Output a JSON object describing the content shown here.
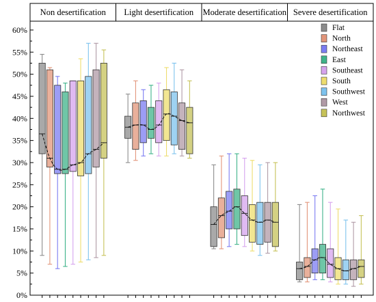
{
  "chart_data": {
    "type": "boxplot",
    "y_axis": {
      "min": 0,
      "max": 62,
      "ticks": [
        0,
        5,
        10,
        15,
        20,
        25,
        30,
        35,
        40,
        45,
        50,
        55,
        60
      ],
      "tick_labels": [
        "0%",
        "5%",
        "10%",
        "15%",
        "20%",
        "25%",
        "30%",
        "35%",
        "40%",
        "45%",
        "50%",
        "55%",
        "60%"
      ]
    },
    "groups": [
      "Non desertification",
      "Light desertification",
      "Moderate desertification",
      "Severe desertification"
    ],
    "series": [
      {
        "name": "Flat",
        "color": "#8c8c8c"
      },
      {
        "name": "North",
        "color": "#e2957a"
      },
      {
        "name": "Northeast",
        "color": "#7b7cf2"
      },
      {
        "name": "East",
        "color": "#3fb38a"
      },
      {
        "name": "Southeast",
        "color": "#d6a3ee"
      },
      {
        "name": "South",
        "color": "#eedd6e"
      },
      {
        "name": "Southwest",
        "color": "#7ec3ee"
      },
      {
        "name": "West",
        "color": "#b09aa6"
      },
      {
        "name": "Northwest",
        "color": "#c6c259"
      }
    ],
    "boxes": [
      [
        {
          "min": 9,
          "q1": 32,
          "median": 36.5,
          "q3": 52.5,
          "max": 54.5
        },
        {
          "min": 7,
          "q1": 29,
          "median": 31,
          "q3": 51,
          "max": 51.5
        },
        {
          "min": 6,
          "q1": 27.5,
          "median": 28.5,
          "q3": 47.5,
          "max": 49.5
        },
        {
          "min": 6.5,
          "q1": 27.5,
          "median": 28.5,
          "q3": 46,
          "max": 48
        },
        {
          "min": 7,
          "q1": 28,
          "median": 29.5,
          "q3": 48.5,
          "max": 48.5
        },
        {
          "min": 7.5,
          "q1": 27,
          "median": 30,
          "q3": 48.5,
          "max": 53.5
        },
        {
          "min": 8,
          "q1": 27.5,
          "median": 32,
          "q3": 49.5,
          "max": 57
        },
        {
          "min": 8.5,
          "q1": 29,
          "median": 33,
          "q3": 51,
          "max": 57
        },
        {
          "min": 9,
          "q1": 31,
          "median": 34.5,
          "q3": 52.5,
          "max": 55.5
        }
      ],
      [
        {
          "min": 30,
          "q1": 35.5,
          "median": 38,
          "q3": 40.5,
          "max": 45.5
        },
        {
          "min": 30.5,
          "q1": 33,
          "median": 38.5,
          "q3": 43.5,
          "max": 48.5
        },
        {
          "min": 31.5,
          "q1": 34.5,
          "median": 38.5,
          "q3": 44,
          "max": 46.5
        },
        {
          "min": 32,
          "q1": 35.5,
          "median": 37.5,
          "q3": 42.5,
          "max": 47.5
        },
        {
          "min": 31.5,
          "q1": 34.5,
          "median": 38.5,
          "q3": 44,
          "max": 48
        },
        {
          "min": 31.5,
          "q1": 35,
          "median": 41,
          "q3": 46.5,
          "max": 51.5
        },
        {
          "min": 32,
          "q1": 34,
          "median": 40.5,
          "q3": 46,
          "max": 52.5
        },
        {
          "min": 31.5,
          "q1": 33,
          "median": 39.5,
          "q3": 43.5,
          "max": 51
        },
        {
          "min": 31,
          "q1": 32,
          "median": 39,
          "q3": 42.5,
          "max": 48.5
        }
      ],
      [
        {
          "min": 10.5,
          "q1": 11,
          "median": 16,
          "q3": 20,
          "max": 29.5
        },
        {
          "min": 10.5,
          "q1": 13,
          "median": 18,
          "q3": 22,
          "max": 31.5
        },
        {
          "min": 11,
          "q1": 15,
          "median": 19,
          "q3": 23.5,
          "max": 32
        },
        {
          "min": 11.5,
          "q1": 15,
          "median": 20,
          "q3": 24,
          "max": 32
        },
        {
          "min": 11,
          "q1": 13.5,
          "median": 18.5,
          "q3": 22.5,
          "max": 31
        },
        {
          "min": 10,
          "q1": 12,
          "median": 17,
          "q3": 20.5,
          "max": 30.5
        },
        {
          "min": 9,
          "q1": 11.5,
          "median": 16.5,
          "q3": 21,
          "max": 29.5
        },
        {
          "min": 9.5,
          "q1": 12,
          "median": 17,
          "q3": 21,
          "max": 30
        },
        {
          "min": 10,
          "q1": 11,
          "median": 16.5,
          "q3": 21,
          "max": 30
        }
      ],
      [
        {
          "min": 3,
          "q1": 3.5,
          "median": 6,
          "q3": 7.5,
          "max": 20.5
        },
        {
          "min": 3,
          "q1": 4,
          "median": 6.5,
          "q3": 8.5,
          "max": 21
        },
        {
          "min": 3.5,
          "q1": 5,
          "median": 8,
          "q3": 10.5,
          "max": 22.5
        },
        {
          "min": 3.5,
          "q1": 5,
          "median": 8.5,
          "q3": 11.5,
          "max": 24
        },
        {
          "min": 3,
          "q1": 4,
          "median": 7,
          "q3": 10.5,
          "max": 21
        },
        {
          "min": 2.5,
          "q1": 3.5,
          "median": 6,
          "q3": 8.5,
          "max": 19.5
        },
        {
          "min": 2.5,
          "q1": 3.5,
          "median": 5.5,
          "q3": 8,
          "max": 17
        },
        {
          "min": 2,
          "q1": 3.5,
          "median": 6,
          "q3": 8,
          "max": 16.5
        },
        {
          "min": 2.5,
          "q1": 4,
          "median": 6.5,
          "q3": 8,
          "max": 18
        }
      ]
    ],
    "trend_line": "dashed black curve through medians of each group",
    "legend_position": "top-right",
    "grid": false
  }
}
